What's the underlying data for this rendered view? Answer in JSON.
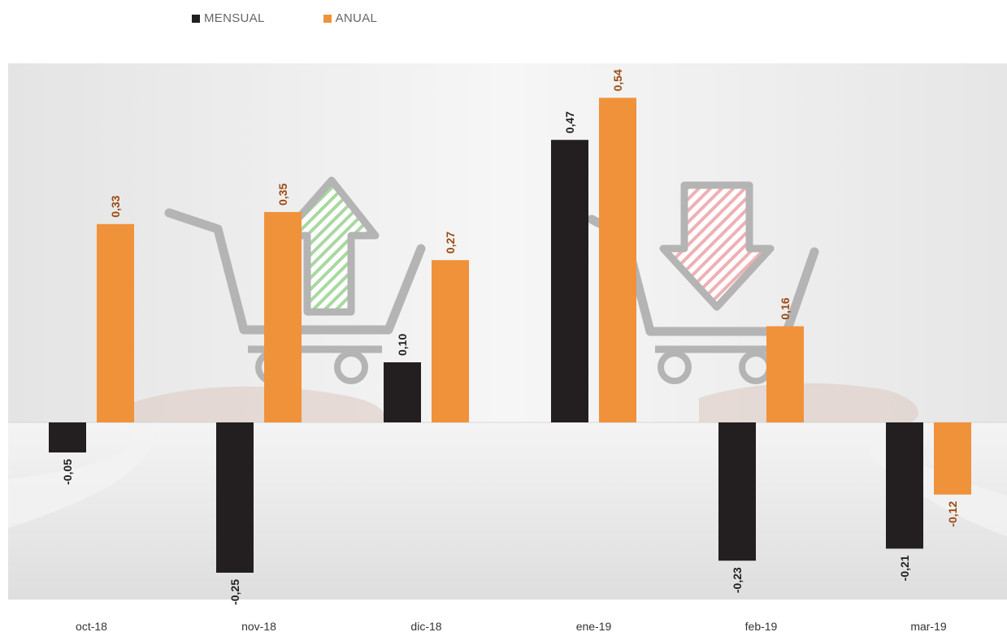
{
  "legend": {
    "mensual_label": "MENSUAL",
    "anual_label": "ANUAL"
  },
  "colors": {
    "mensual": "#231f20",
    "anual": "#f0923a",
    "mensual_label": "#231f20",
    "anual_label": "#9c4a12",
    "axis_label": "#333333"
  },
  "decorations": {
    "left_icon": "shopping-cart-up-arrow-icon",
    "right_icon": "shopping-cart-down-arrow-icon",
    "background": "hands-photo-faded"
  },
  "chart_data": {
    "type": "bar",
    "categories": [
      "oct-18",
      "nov-18",
      "dic-18",
      "ene-19",
      "feb-19",
      "mar-19"
    ],
    "series": [
      {
        "name": "MENSUAL",
        "values": [
          -0.05,
          -0.25,
          0.1,
          0.47,
          -0.23,
          -0.21
        ],
        "labels": [
          "-0,05",
          "-0,25",
          "0,10",
          "0,47",
          "-0,23",
          "-0,21"
        ]
      },
      {
        "name": "ANUAL",
        "values": [
          0.33,
          0.35,
          0.27,
          0.54,
          0.16,
          -0.12
        ],
        "labels": [
          "0,33",
          "0,35",
          "0,27",
          "0,54",
          "0,16",
          "-0,12"
        ]
      }
    ],
    "legend_position": "top-left",
    "grid": false,
    "data_labels": "rotated-vertical"
  }
}
